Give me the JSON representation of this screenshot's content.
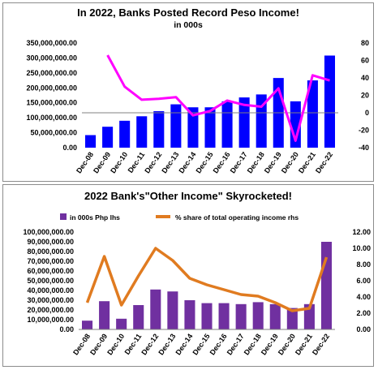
{
  "chart_data": [
    {
      "type": "bar",
      "title": "In 2022, Banks Posted Record Peso Income!",
      "subtitle": "in 000s",
      "categories": [
        "Dec-08",
        "Dec-09",
        "Dec-10",
        "Dec-11",
        "Dec-12",
        "Dec-13",
        "Dec-14",
        "Dec-15",
        "Dec-16",
        "Dec-17",
        "Dec-18",
        "Dec-19",
        "Dec-20",
        "Dec-21",
        "Dec-22"
      ],
      "series": [
        {
          "type": "bar",
          "axis": "left",
          "color": "#0000ff",
          "values": [
            42000000,
            70000000,
            90000000,
            105000000,
            122000000,
            145000000,
            135000000,
            135000000,
            155000000,
            168000000,
            178000000,
            233000000,
            155000000,
            225000000,
            308000000
          ]
        },
        {
          "type": "line",
          "axis": "right",
          "color": "#ff00ff",
          "values": [
            null,
            66,
            30,
            15,
            16,
            18,
            -3,
            2,
            14,
            9,
            7,
            28,
            -32,
            43,
            37
          ]
        }
      ],
      "ylim_left": [
        0,
        350000000
      ],
      "ylim_right": [
        -40,
        80
      ],
      "yticks_left": [
        "0.00",
        "50,000,000.00",
        "100,000,000.00",
        "150,000,000.00",
        "200,000,000.00",
        "250,000,000.00",
        "300,000,000.00",
        "350,000,000.00"
      ],
      "yticks_right": [
        "-40",
        "-20",
        "0",
        "20",
        "40",
        "60",
        "80"
      ],
      "grid": false
    },
    {
      "type": "bar",
      "title": "2022 Bank's\"Other Income\" Skyrocketed!",
      "categories": [
        "Dec-08",
        "Dec-09",
        "Dec-10",
        "Dec-11",
        "Dec-12",
        "Dec-13",
        "Dec-14",
        "Dec-15",
        "Dec-16",
        "Dec-17",
        "Dec-18",
        "Dec-19",
        "Dec-20",
        "Dec-21",
        "Dec-22"
      ],
      "series": [
        {
          "name": "in 000s Php lhs",
          "type": "bar",
          "axis": "left",
          "color": "#7030a0",
          "values": [
            9000000,
            29000000,
            11000000,
            25000000,
            41000000,
            39000000,
            30000000,
            27000000,
            27000000,
            26000000,
            28000000,
            26000000,
            22000000,
            26000000,
            90000000
          ]
        },
        {
          "name": "% share of total operating income rhs",
          "type": "line",
          "axis": "right",
          "color": "#e07b20",
          "values": [
            3.3,
            9.0,
            3.0,
            6.6,
            10.0,
            8.5,
            6.3,
            5.5,
            4.9,
            4.3,
            4.1,
            3.3,
            2.3,
            2.6,
            8.9
          ]
        }
      ],
      "ylim_left": [
        0,
        100000000
      ],
      "ylim_right": [
        0,
        12
      ],
      "yticks_left": [
        "0.00",
        "10,000,000.00",
        "20,000,000.00",
        "30,000,000.00",
        "40,000,000.00",
        "50,000,000.00",
        "60,000,000.00",
        "70,000,000.00",
        "80,000,000.00",
        "90,000,000.00",
        "100,000,000.00"
      ],
      "yticks_right": [
        "0.00",
        "2.00",
        "4.00",
        "6.00",
        "8.00",
        "10.00",
        "12.00"
      ],
      "legend_position": "top",
      "grid": false
    }
  ]
}
